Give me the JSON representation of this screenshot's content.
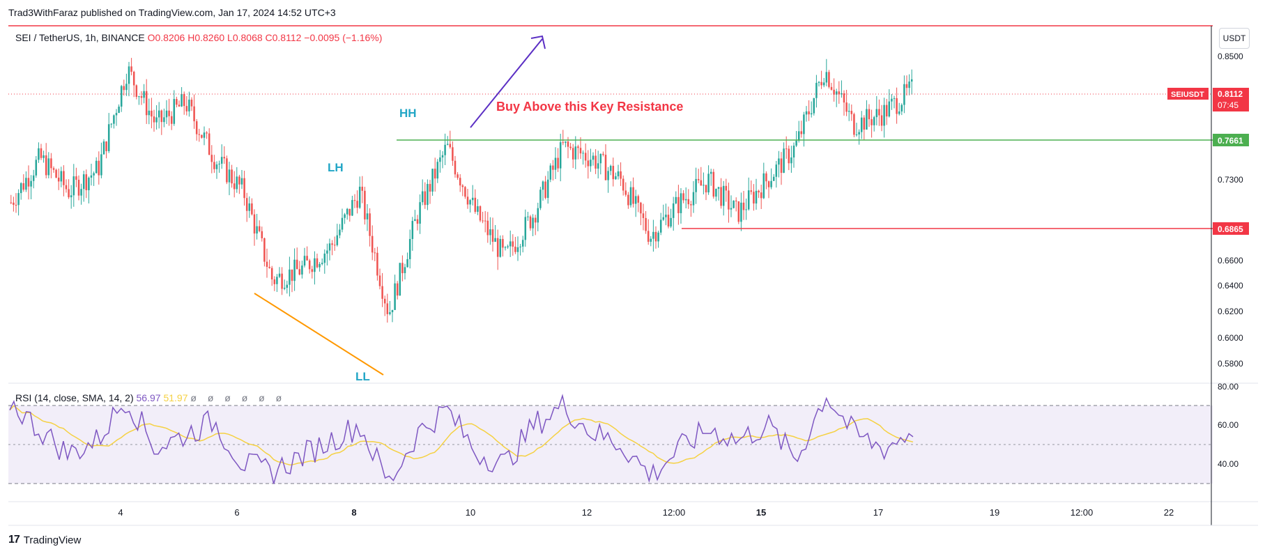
{
  "header": {
    "published_text": "Trad3WithFaraz published on TradingView.com, Jan 17, 2024 14:52 UTC+3"
  },
  "legend": {
    "symbol": "SEI / TetherUS, 1h, BINANCE",
    "ohlc": "O0.8206  H0.8260  L0.8068  C0.8112  −0.0095 (−1.16%)"
  },
  "rsi_legend": {
    "label": "RSI (14, close, SMA, 14, 2)",
    "rsi": "56.97",
    "sma": "51.97",
    "zeros": "ø ø ø ø ø ø"
  },
  "price_axis": {
    "unit": "USDT",
    "ticks": [
      "0.8500",
      "0.7300",
      "0.6600",
      "0.6400",
      "0.6200",
      "0.6000",
      "0.5800"
    ],
    "labels": [
      {
        "name": "SEIUSDT",
        "value": "0.8112",
        "sub": "07:45",
        "color": "#f23645"
      },
      {
        "value": "0.7661",
        "color": "#4caf50"
      },
      {
        "value": "0.6865",
        "color": "#f23645"
      }
    ]
  },
  "rsi_axis": {
    "ticks": [
      "80.00",
      "60.00",
      "40.00"
    ]
  },
  "time_axis": {
    "ticks": [
      "4",
      "6",
      "8",
      "10",
      "12",
      "12:00",
      "15",
      "17",
      "19",
      "12:00",
      "22"
    ]
  },
  "annotations": {
    "lh": "LH",
    "hh": "HH",
    "ll": "LL",
    "buy_text": "Buy Above this Key Resistance"
  },
  "colors": {
    "up": "#26a69a",
    "down": "#ef5350",
    "rsi": "#7e57c2",
    "rsi_sma": "#f5d142",
    "support": "#4caf50",
    "resistance": "#f23645"
  },
  "brand": {
    "name": "TradingView"
  },
  "chart_data": {
    "type": "candlestick",
    "symbol": "SEI / TetherUS",
    "interval": "1h",
    "exchange": "BINANCE",
    "ylim": [
      0.57,
      0.88
    ],
    "last": {
      "open": 0.8206,
      "high": 0.826,
      "low": 0.8068,
      "close": 0.8112,
      "change": -0.0095,
      "change_pct": -1.16
    },
    "levels": [
      {
        "value": 0.7661,
        "color": "#4caf50"
      },
      {
        "value": 0.6865,
        "color": "#f23645"
      }
    ],
    "close_path": [
      [
        "Jan 2",
        0.71
      ],
      [
        "Jan 3",
        0.75
      ],
      [
        "Jan 3",
        0.72
      ],
      [
        "Jan 4",
        0.74
      ],
      [
        "Jan 4",
        0.83
      ],
      [
        "Jan 5",
        0.78
      ],
      [
        "Jan 5",
        0.8
      ],
      [
        "Jan 5",
        0.75
      ],
      [
        "Jan 6",
        0.72
      ],
      [
        "Jan 6",
        0.64
      ],
      [
        "Jan 7",
        0.65
      ],
      [
        "Jan 7",
        0.67
      ],
      [
        "Jan 8",
        0.72
      ],
      [
        "Jan 8",
        0.61
      ],
      [
        "Jan 9",
        0.7
      ],
      [
        "Jan 9",
        0.76
      ],
      [
        "Jan 10",
        0.7
      ],
      [
        "Jan 10",
        0.66
      ],
      [
        "Jan 11",
        0.7
      ],
      [
        "Jan 11",
        0.76
      ],
      [
        "Jan 12",
        0.75
      ],
      [
        "Jan 12",
        0.73
      ],
      [
        "Jan 13",
        0.68
      ],
      [
        "Jan 13",
        0.71
      ],
      [
        "Jan 14",
        0.73
      ],
      [
        "Jan 14",
        0.7
      ],
      [
        "Jan 15",
        0.73
      ],
      [
        "Jan 15",
        0.76
      ],
      [
        "Jan 16",
        0.83
      ],
      [
        "Jan 16",
        0.78
      ],
      [
        "Jan 17",
        0.79
      ],
      [
        "Jan 17",
        0.8112
      ]
    ],
    "rsi": {
      "period": 14,
      "value": 56.97,
      "sma": 51.97,
      "bands": [
        70,
        50,
        30
      ],
      "ylim": [
        20,
        80
      ],
      "values": [
        72,
        58,
        45,
        52,
        74,
        48,
        55,
        62,
        40,
        36,
        44,
        52,
        60,
        30,
        56,
        68,
        46,
        40,
        60,
        70,
        56,
        50,
        34,
        48,
        58,
        52,
        60,
        42,
        76,
        55,
        48,
        57
      ]
    }
  }
}
